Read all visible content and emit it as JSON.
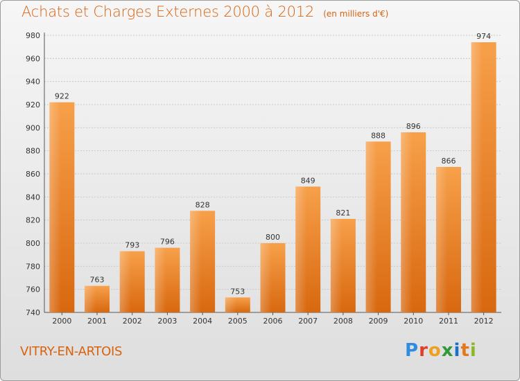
{
  "chart_data": {
    "type": "bar",
    "title": "Achats et Charges Externes 2000 à 2012",
    "subtitle": "(en milliers d'€)",
    "categories": [
      "2000",
      "2001",
      "2002",
      "2003",
      "2004",
      "2005",
      "2006",
      "2007",
      "2008",
      "2009",
      "2010",
      "2011",
      "2012"
    ],
    "values": [
      922,
      763,
      793,
      796,
      828,
      753,
      800,
      849,
      821,
      888,
      896,
      866,
      974
    ],
    "ylim": [
      740,
      980
    ],
    "yticks": [
      740,
      760,
      780,
      800,
      820,
      840,
      860,
      880,
      900,
      920,
      940,
      960,
      980
    ],
    "grid": true,
    "bar_color": "#f08a30"
  },
  "footer": {
    "city": "VITRY-EN-ARTOIS",
    "logo_text": "Proxiti"
  }
}
